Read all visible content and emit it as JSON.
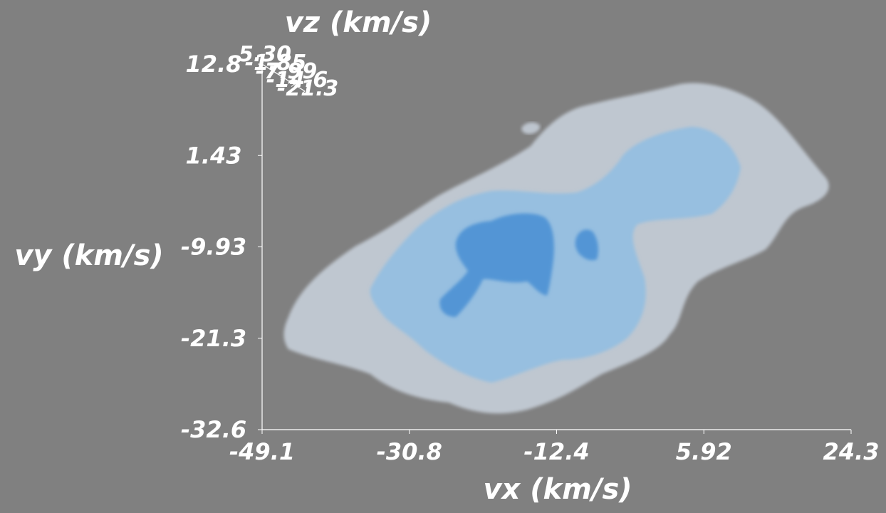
{
  "chart_data": {
    "type": "3d-isosurface",
    "xlabel": "vx (km/s)",
    "ylabel": "vy (km/s)",
    "zlabel": "vz (km/s)",
    "x_ticks": [
      "-49.1",
      "-30.8",
      "-12.4",
      "5.92",
      "24.3"
    ],
    "y_ticks": [
      "12.8",
      "1.43",
      "-9.93",
      "-21.3",
      "-32.6"
    ],
    "z_ticks": [
      "5.30",
      "-1.85",
      "-7.99",
      "-14.6",
      "-21.3"
    ],
    "xlim": [
      -49.1,
      24.3
    ],
    "ylim": [
      -32.6,
      12.8
    ],
    "zlim": [
      -21.3,
      5.3
    ],
    "surfaces": [
      {
        "level": "outer",
        "color": "#c4ccd6"
      },
      {
        "level": "middle",
        "color": "#8fbde3"
      },
      {
        "level": "inner",
        "color": "#4a90d4"
      }
    ],
    "background": "#808080"
  }
}
